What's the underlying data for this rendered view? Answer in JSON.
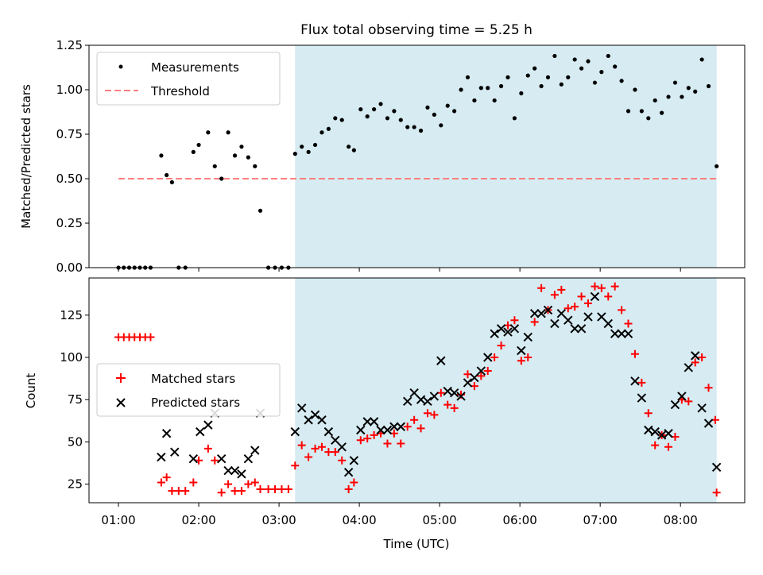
{
  "chart_data": {
    "title": "Flux total observing time = 5.25 h",
    "xlabel": "Time (UTC)",
    "x_ticks": [
      "01:00",
      "02:00",
      "03:00",
      "04:00",
      "05:00",
      "06:00",
      "07:00",
      "08:00"
    ],
    "xlim": [
      "00:38",
      "08:48"
    ],
    "observing_window": [
      "03:12",
      "08:27"
    ],
    "colors": {
      "window": "#add8e6",
      "measurements": "#000000",
      "threshold": "#ff7f7f",
      "matched": "#ff0000",
      "predicted": "#000000"
    },
    "top": {
      "type": "scatter",
      "ylabel": "Matched/Predicted stars",
      "ylim": [
        0,
        1.25
      ],
      "y_ticks": [
        "0.00",
        "0.25",
        "0.50",
        "0.75",
        "1.00",
        "1.25"
      ],
      "legend": {
        "position": "top-left",
        "measurements_label": "Measurements",
        "threshold_label": "Threshold"
      },
      "threshold": {
        "value": 0.5,
        "x_start": "01:00",
        "x_end": "08:27"
      },
      "series": [
        {
          "name": "Measurements",
          "points": [
            [
              "01:00",
              0
            ],
            [
              "01:04",
              0
            ],
            [
              "01:08",
              0
            ],
            [
              "01:12",
              0
            ],
            [
              "01:16",
              0
            ],
            [
              "01:20",
              0
            ],
            [
              "01:24",
              0
            ],
            [
              "01:32",
              0.63
            ],
            [
              "01:36",
              0.52
            ],
            [
              "01:40",
              0.48
            ],
            [
              "01:45",
              0
            ],
            [
              "01:50",
              0
            ],
            [
              "01:56",
              0.65
            ],
            [
              "02:00",
              0.69
            ],
            [
              "02:07",
              0.76
            ],
            [
              "02:12",
              0.57
            ],
            [
              "02:17",
              0.5
            ],
            [
              "02:22",
              0.76
            ],
            [
              "02:27",
              0.63
            ],
            [
              "02:32",
              0.68
            ],
            [
              "02:37",
              0.62
            ],
            [
              "02:42",
              0.57
            ],
            [
              "02:46",
              0.32
            ],
            [
              "02:52",
              0
            ],
            [
              "02:57",
              0
            ],
            [
              "03:02",
              0
            ],
            [
              "03:07",
              0
            ],
            [
              "03:12",
              0.64
            ],
            [
              "03:17",
              0.68
            ],
            [
              "03:22",
              0.65
            ],
            [
              "03:27",
              0.69
            ],
            [
              "03:32",
              0.76
            ],
            [
              "03:37",
              0.78
            ],
            [
              "03:42",
              0.84
            ],
            [
              "03:47",
              0.83
            ],
            [
              "03:52",
              0.68
            ],
            [
              "03:56",
              0.66
            ],
            [
              "04:01",
              0.89
            ],
            [
              "04:06",
              0.85
            ],
            [
              "04:11",
              0.89
            ],
            [
              "04:16",
              0.92
            ],
            [
              "04:21",
              0.84
            ],
            [
              "04:26",
              0.88
            ],
            [
              "04:31",
              0.83
            ],
            [
              "04:36",
              0.79
            ],
            [
              "04:41",
              0.79
            ],
            [
              "04:46",
              0.77
            ],
            [
              "04:51",
              0.9
            ],
            [
              "04:56",
              0.86
            ],
            [
              "05:01",
              0.8
            ],
            [
              "05:06",
              0.91
            ],
            [
              "05:11",
              0.88
            ],
            [
              "05:16",
              1.0
            ],
            [
              "05:21",
              1.07
            ],
            [
              "05:26",
              0.94
            ],
            [
              "05:31",
              1.01
            ],
            [
              "05:36",
              1.01
            ],
            [
              "05:41",
              0.94
            ],
            [
              "05:46",
              1.02
            ],
            [
              "05:51",
              1.07
            ],
            [
              "05:56",
              0.84
            ],
            [
              "06:01",
              0.98
            ],
            [
              "06:06",
              1.08
            ],
            [
              "06:11",
              1.12
            ],
            [
              "06:16",
              1.02
            ],
            [
              "06:21",
              1.07
            ],
            [
              "06:26",
              1.19
            ],
            [
              "06:31",
              1.03
            ],
            [
              "06:36",
              1.07
            ],
            [
              "06:41",
              1.17
            ],
            [
              "06:46",
              1.12
            ],
            [
              "06:51",
              1.16
            ],
            [
              "06:56",
              1.04
            ],
            [
              "07:01",
              1.1
            ],
            [
              "07:06",
              1.19
            ],
            [
              "07:11",
              1.13
            ],
            [
              "07:16",
              1.05
            ],
            [
              "07:21",
              0.88
            ],
            [
              "07:26",
              1.0
            ],
            [
              "07:31",
              0.88
            ],
            [
              "07:36",
              0.84
            ],
            [
              "07:41",
              0.94
            ],
            [
              "07:46",
              0.87
            ],
            [
              "07:51",
              0.96
            ],
            [
              "07:56",
              1.04
            ],
            [
              "08:01",
              0.96
            ],
            [
              "08:06",
              1.01
            ],
            [
              "08:11",
              0.99
            ],
            [
              "08:16",
              1.17
            ],
            [
              "08:21",
              1.02
            ],
            [
              "08:27",
              0.57
            ]
          ]
        }
      ]
    },
    "bottom": {
      "type": "scatter",
      "ylabel": "Count",
      "ylim": [
        14,
        147
      ],
      "y_ticks": [
        "25",
        "50",
        "75",
        "100",
        "125"
      ],
      "legend": {
        "position": "center-left"
      },
      "series": [
        {
          "name": "Matched stars",
          "marker": "plus",
          "points": [
            [
              "01:00",
              112
            ],
            [
              "01:04",
              112
            ],
            [
              "01:08",
              112
            ],
            [
              "01:12",
              112
            ],
            [
              "01:16",
              112
            ],
            [
              "01:20",
              112
            ],
            [
              "01:24",
              112
            ],
            [
              "01:32",
              26
            ],
            [
              "01:36",
              29
            ],
            [
              "01:40",
              21
            ],
            [
              "01:45",
              21
            ],
            [
              "01:50",
              21
            ],
            [
              "01:56",
              26
            ],
            [
              "02:00",
              39
            ],
            [
              "02:07",
              46
            ],
            [
              "02:12",
              39
            ],
            [
              "02:17",
              20
            ],
            [
              "02:22",
              25
            ],
            [
              "02:27",
              21
            ],
            [
              "02:32",
              21
            ],
            [
              "02:37",
              25
            ],
            [
              "02:42",
              26
            ],
            [
              "02:46",
              22
            ],
            [
              "02:52",
              22
            ],
            [
              "02:57",
              22
            ],
            [
              "03:02",
              22
            ],
            [
              "03:07",
              22
            ],
            [
              "03:12",
              36
            ],
            [
              "03:17",
              48
            ],
            [
              "03:22",
              41
            ],
            [
              "03:27",
              46
            ],
            [
              "03:32",
              47
            ],
            [
              "03:37",
              44
            ],
            [
              "03:42",
              44
            ],
            [
              "03:47",
              39
            ],
            [
              "03:52",
              22
            ],
            [
              "03:56",
              26
            ],
            [
              "04:01",
              51
            ],
            [
              "04:06",
              52
            ],
            [
              "04:11",
              54
            ],
            [
              "04:16",
              55
            ],
            [
              "04:21",
              49
            ],
            [
              "04:26",
              55
            ],
            [
              "04:31",
              49
            ],
            [
              "04:36",
              59
            ],
            [
              "04:41",
              63
            ],
            [
              "04:46",
              58
            ],
            [
              "04:51",
              67
            ],
            [
              "04:56",
              66
            ],
            [
              "05:01",
              79
            ],
            [
              "05:06",
              72
            ],
            [
              "05:11",
              70
            ],
            [
              "05:16",
              78
            ],
            [
              "05:21",
              90
            ],
            [
              "05:26",
              83
            ],
            [
              "05:31",
              89
            ],
            [
              "05:36",
              92
            ],
            [
              "05:41",
              100
            ],
            [
              "05:46",
              107
            ],
            [
              "05:51",
              119
            ],
            [
              "05:56",
              122
            ],
            [
              "06:01",
              98
            ],
            [
              "06:06",
              100
            ],
            [
              "06:11",
              121
            ],
            [
              "06:16",
              141
            ],
            [
              "06:21",
              128
            ],
            [
              "06:26",
              137
            ],
            [
              "06:31",
              140
            ],
            [
              "06:36",
              129
            ],
            [
              "06:41",
              130
            ],
            [
              "06:46",
              136
            ],
            [
              "06:51",
              132
            ],
            [
              "06:56",
              142
            ],
            [
              "07:01",
              141
            ],
            [
              "07:06",
              136
            ],
            [
              "07:11",
              142
            ],
            [
              "07:16",
              128
            ],
            [
              "07:21",
              120
            ],
            [
              "07:26",
              102
            ],
            [
              "07:31",
              85
            ],
            [
              "07:36",
              67
            ],
            [
              "07:41",
              48
            ],
            [
              "07:46",
              54
            ],
            [
              "07:51",
              47
            ],
            [
              "07:56",
              53
            ],
            [
              "08:01",
              75
            ],
            [
              "08:06",
              74
            ],
            [
              "08:11",
              97
            ],
            [
              "08:16",
              100
            ],
            [
              "08:21",
              82
            ],
            [
              "08:26",
              63
            ],
            [
              "08:27",
              20
            ]
          ]
        },
        {
          "name": "Predicted stars",
          "marker": "x",
          "points": [
            [
              "01:32",
              41
            ],
            [
              "01:36",
              55
            ],
            [
              "01:42",
              44
            ],
            [
              "01:56",
              40
            ],
            [
              "02:01",
              56
            ],
            [
              "02:07",
              60
            ],
            [
              "02:12",
              67
            ],
            [
              "02:17",
              40
            ],
            [
              "02:22",
              33
            ],
            [
              "02:27",
              33
            ],
            [
              "02:32",
              31
            ],
            [
              "02:37",
              40
            ],
            [
              "02:42",
              45
            ],
            [
              "02:46",
              67
            ],
            [
              "03:12",
              56
            ],
            [
              "03:17",
              70
            ],
            [
              "03:22",
              63
            ],
            [
              "03:27",
              66
            ],
            [
              "03:32",
              63
            ],
            [
              "03:37",
              56
            ],
            [
              "03:42",
              51
            ],
            [
              "03:47",
              47
            ],
            [
              "03:52",
              32
            ],
            [
              "03:56",
              39
            ],
            [
              "04:01",
              57
            ],
            [
              "04:06",
              62
            ],
            [
              "04:11",
              62
            ],
            [
              "04:16",
              57
            ],
            [
              "04:21",
              57
            ],
            [
              "04:26",
              59
            ],
            [
              "04:31",
              59
            ],
            [
              "04:36",
              74
            ],
            [
              "04:41",
              79
            ],
            [
              "04:46",
              75
            ],
            [
              "04:51",
              74
            ],
            [
              "04:56",
              77
            ],
            [
              "05:01",
              98
            ],
            [
              "05:06",
              80
            ],
            [
              "05:11",
              79
            ],
            [
              "05:16",
              77
            ],
            [
              "05:21",
              85
            ],
            [
              "05:26",
              88
            ],
            [
              "05:31",
              92
            ],
            [
              "05:36",
              100
            ],
            [
              "05:41",
              114
            ],
            [
              "05:46",
              117
            ],
            [
              "05:51",
              115
            ],
            [
              "05:56",
              117
            ],
            [
              "06:01",
              104
            ],
            [
              "06:06",
              112
            ],
            [
              "06:11",
              126
            ],
            [
              "06:16",
              126
            ],
            [
              "06:21",
              128
            ],
            [
              "06:26",
              120
            ],
            [
              "06:31",
              126
            ],
            [
              "06:36",
              122
            ],
            [
              "06:41",
              117
            ],
            [
              "06:46",
              117
            ],
            [
              "06:51",
              124
            ],
            [
              "06:56",
              136
            ],
            [
              "07:01",
              124
            ],
            [
              "07:06",
              120
            ],
            [
              "07:11",
              114
            ],
            [
              "07:16",
              114
            ],
            [
              "07:21",
              114
            ],
            [
              "07:26",
              86
            ],
            [
              "07:31",
              76
            ],
            [
              "07:36",
              57
            ],
            [
              "07:41",
              56
            ],
            [
              "07:46",
              54
            ],
            [
              "07:51",
              55
            ],
            [
              "07:56",
              72
            ],
            [
              "08:01",
              77
            ],
            [
              "08:06",
              94
            ],
            [
              "08:11",
              101
            ],
            [
              "08:16",
              70
            ],
            [
              "08:21",
              61
            ],
            [
              "08:27",
              35
            ]
          ]
        }
      ]
    }
  }
}
